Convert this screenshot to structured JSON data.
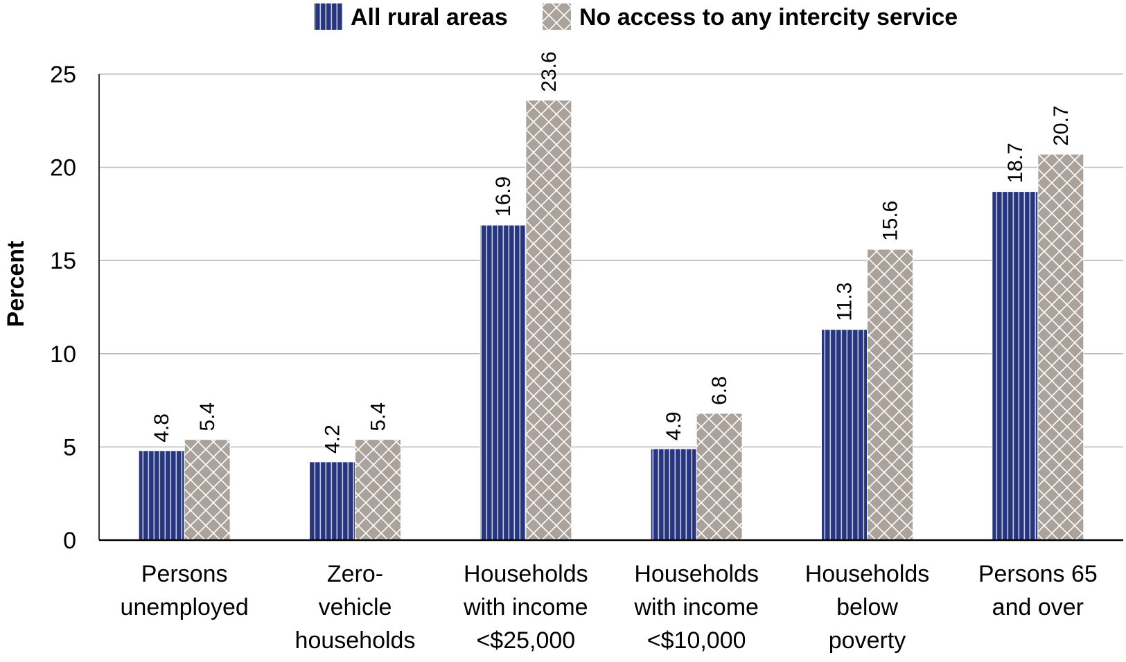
{
  "chart_data": {
    "type": "bar",
    "title": "",
    "xlabel": "",
    "ylabel": "Percent",
    "ylim": [
      0,
      25
    ],
    "yticks": [
      0,
      5,
      10,
      15,
      20,
      25
    ],
    "grid": true,
    "legend_position": "top-center",
    "categories": [
      [
        "Persons",
        "unemployed"
      ],
      [
        "Zero-",
        "vehicle",
        "households"
      ],
      [
        "Households",
        "with income",
        "<$25,000"
      ],
      [
        "Households",
        "with income",
        "<$10,000"
      ],
      [
        "Households",
        "below",
        "poverty"
      ],
      [
        "Persons 65",
        "and over"
      ]
    ],
    "series": [
      {
        "name": "All rural areas",
        "color": "#27357f",
        "pattern": "vertical-stripes",
        "values": [
          4.8,
          4.2,
          16.9,
          4.9,
          11.3,
          18.7
        ],
        "labels": [
          "4.8",
          "4.2",
          "16.9",
          "4.9",
          "11.3",
          "18.7"
        ]
      },
      {
        "name": "No access to any intercity service",
        "color": "#aba29c",
        "pattern": "crosshatch",
        "values": [
          5.4,
          5.4,
          23.6,
          6.8,
          15.6,
          20.7
        ],
        "labels": [
          "5.4",
          "5.4",
          "23.6",
          "6.8",
          "15.6",
          "20.7"
        ]
      }
    ]
  }
}
